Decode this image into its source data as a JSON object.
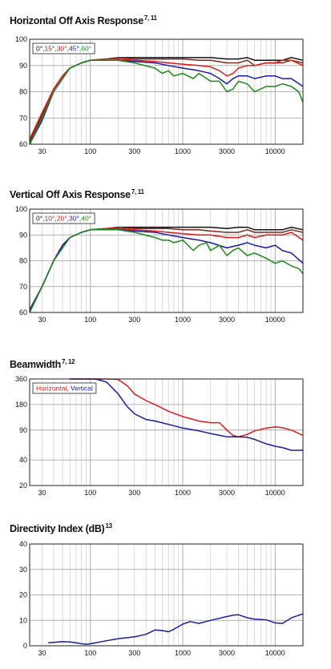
{
  "colors": {
    "black": "#111111",
    "brown": "#7a2a1a",
    "red": "#e01a1a",
    "navy": "#1a1aa6",
    "green": "#1a8a1a"
  },
  "chart_data": [
    {
      "type": "line",
      "title": "Horizontal Off Axis Response",
      "title_sup": "7, 11",
      "xscale": "log",
      "xlim": [
        22,
        20000
      ],
      "ylim": [
        60,
        100
      ],
      "grid": true,
      "xticks": [
        30,
        100,
        300,
        1000,
        3000,
        10000
      ],
      "xtick_labels": [
        "30",
        "100",
        "300",
        "1000",
        "3000",
        "10000"
      ],
      "yticks": [
        60,
        70,
        80,
        90,
        100
      ],
      "ytick_labels": [
        "60",
        "70",
        "80",
        "90",
        "100"
      ],
      "legend_position": "top-left",
      "series": [
        {
          "name": "0°",
          "color": "#111111",
          "x": [
            22,
            30,
            40,
            50,
            60,
            80,
            100,
            150,
            200,
            300,
            500,
            700,
            1000,
            1500,
            2000,
            3000,
            4000,
            5000,
            6000,
            8000,
            10000,
            12000,
            15000,
            20000
          ],
          "y": [
            61,
            71,
            81,
            86,
            89,
            91,
            92,
            92.5,
            93,
            93,
            93,
            93,
            93,
            93,
            93,
            92.5,
            92.5,
            93,
            92,
            92,
            92,
            92,
            93,
            92
          ]
        },
        {
          "name": "15°",
          "color": "#7a2a1a",
          "x": [
            22,
            30,
            40,
            50,
            60,
            80,
            100,
            150,
            200,
            300,
            500,
            700,
            1000,
            1500,
            2000,
            3000,
            4000,
            5000,
            6000,
            8000,
            10000,
            12000,
            15000,
            20000
          ],
          "y": [
            61,
            71,
            81,
            86,
            89,
            91,
            92,
            92.5,
            93,
            92.5,
            92.5,
            92.5,
            92.5,
            92,
            92,
            91,
            91,
            92,
            90,
            91,
            91,
            91,
            92,
            91
          ]
        },
        {
          "name": "30°",
          "color": "#e01a1a",
          "x": [
            22,
            30,
            40,
            50,
            60,
            80,
            100,
            150,
            200,
            300,
            500,
            700,
            1000,
            1500,
            2000,
            2500,
            3000,
            3500,
            4000,
            5000,
            6000,
            8000,
            10000,
            12000,
            15000,
            20000
          ],
          "y": [
            62,
            72,
            81,
            86,
            89,
            91,
            92,
            92.5,
            92.5,
            92,
            91.5,
            91,
            90.5,
            90,
            89.5,
            88,
            86,
            87,
            89,
            90,
            90,
            91,
            91,
            92,
            92,
            90
          ]
        },
        {
          "name": "45°",
          "color": "#1a1aa6",
          "x": [
            22,
            30,
            40,
            50,
            60,
            80,
            100,
            150,
            200,
            300,
            500,
            700,
            1000,
            1500,
            2000,
            2500,
            3000,
            3500,
            4000,
            5000,
            6000,
            8000,
            10000,
            12000,
            15000,
            20000
          ],
          "y": [
            60,
            69,
            80,
            85,
            89,
            91,
            92,
            92,
            92,
            91.5,
            91,
            90,
            89,
            88,
            87,
            85,
            83,
            85,
            86,
            86,
            85,
            86,
            86,
            85,
            85,
            82
          ]
        },
        {
          "name": "60°",
          "color": "#1a8a1a",
          "x": [
            22,
            30,
            40,
            50,
            60,
            80,
            100,
            150,
            200,
            300,
            500,
            600,
            700,
            800,
            1000,
            1300,
            1500,
            2000,
            2500,
            3000,
            3500,
            4000,
            5000,
            6000,
            8000,
            10000,
            12000,
            15000,
            18000,
            20000
          ],
          "y": [
            60,
            70,
            80,
            85,
            89,
            91,
            92,
            92,
            92,
            91,
            89,
            87,
            88,
            86,
            87,
            85,
            87,
            84,
            84,
            80,
            81,
            84,
            83,
            80,
            82,
            82,
            83,
            82,
            80,
            76
          ]
        }
      ]
    },
    {
      "type": "line",
      "title": "Vertical Off Axis Response",
      "title_sup": "7, 11",
      "xscale": "log",
      "xlim": [
        22,
        20000
      ],
      "ylim": [
        60,
        100
      ],
      "grid": true,
      "xticks": [
        30,
        100,
        300,
        1000,
        3000,
        10000
      ],
      "xtick_labels": [
        "30",
        "100",
        "300",
        "1000",
        "3000",
        "10000"
      ],
      "yticks": [
        60,
        70,
        80,
        90,
        100
      ],
      "ytick_labels": [
        "60",
        "70",
        "80",
        "90",
        "100"
      ],
      "legend_position": "top-left",
      "series": [
        {
          "name": "0°",
          "color": "#111111",
          "x": [
            22,
            30,
            40,
            50,
            60,
            80,
            100,
            150,
            200,
            300,
            500,
            700,
            1000,
            1500,
            2000,
            3000,
            4000,
            5000,
            6000,
            8000,
            10000,
            12000,
            15000,
            20000
          ],
          "y": [
            61,
            70,
            80,
            86,
            89,
            91,
            92,
            92.5,
            93,
            93,
            93,
            93,
            93,
            93,
            93,
            92.5,
            93,
            93,
            92,
            92,
            92,
            92,
            93,
            92
          ]
        },
        {
          "name": "10°",
          "color": "#7a2a1a",
          "x": [
            22,
            30,
            40,
            50,
            60,
            80,
            100,
            150,
            200,
            300,
            500,
            700,
            1000,
            1500,
            2000,
            3000,
            4000,
            5000,
            6000,
            8000,
            10000,
            12000,
            15000,
            20000
          ],
          "y": [
            61,
            70,
            80,
            86,
            89,
            91,
            92,
            92.5,
            93,
            92.5,
            92.5,
            92.5,
            92,
            92,
            91.5,
            91,
            91,
            92,
            91,
            91,
            91,
            91,
            92,
            91
          ]
        },
        {
          "name": "20°",
          "color": "#e01a1a",
          "x": [
            22,
            30,
            40,
            50,
            60,
            80,
            100,
            150,
            200,
            300,
            500,
            700,
            1000,
            1500,
            2000,
            3000,
            4000,
            5000,
            6000,
            8000,
            10000,
            12000,
            15000,
            20000
          ],
          "y": [
            61,
            70,
            80,
            86,
            89,
            91,
            92,
            92.5,
            92.5,
            92,
            91.5,
            91,
            90.5,
            90,
            90,
            89,
            89,
            90,
            89,
            90,
            90,
            90,
            91,
            88
          ]
        },
        {
          "name": "30°",
          "color": "#1a1aa6",
          "x": [
            22,
            30,
            40,
            50,
            60,
            80,
            100,
            150,
            200,
            300,
            500,
            700,
            1000,
            1500,
            2000,
            3000,
            4000,
            5000,
            6000,
            8000,
            10000,
            12000,
            15000,
            20000
          ],
          "y": [
            61,
            70,
            80,
            86,
            89,
            91,
            92,
            92,
            92,
            91.5,
            91,
            90,
            89,
            88,
            87,
            85,
            86,
            87,
            86,
            85,
            86,
            84,
            83,
            79
          ]
        },
        {
          "name": "40°",
          "color": "#1a8a1a",
          "x": [
            22,
            30,
            40,
            50,
            60,
            80,
            100,
            150,
            200,
            300,
            500,
            600,
            700,
            800,
            1000,
            1300,
            1500,
            1800,
            2000,
            2500,
            3000,
            3500,
            4000,
            5000,
            6000,
            8000,
            10000,
            12000,
            15000,
            18000,
            20000
          ],
          "y": [
            60,
            70,
            80,
            85,
            89,
            91,
            92,
            92,
            92,
            91,
            89,
            88,
            88,
            87,
            88,
            84,
            86,
            87,
            84,
            86,
            82,
            84,
            85,
            82,
            83,
            81,
            79,
            80,
            78,
            77,
            75
          ]
        }
      ]
    },
    {
      "type": "line",
      "title": "Beamwidth",
      "title_sup": "7, 12",
      "xscale": "log",
      "xlim": [
        22,
        20000
      ],
      "yscale": "log",
      "ylim": [
        20,
        360
      ],
      "grid": true,
      "xticks": [
        30,
        100,
        300,
        1000,
        3000,
        10000
      ],
      "xtick_labels": [
        "30",
        "100",
        "300",
        "1000",
        "3000",
        "10000"
      ],
      "yticks": [
        20,
        40,
        90,
        180,
        360
      ],
      "ytick_labels": [
        "20",
        "40",
        "90",
        "180",
        "360"
      ],
      "legend_position": "top-left",
      "series": [
        {
          "name": "Horizontal",
          "color": "#e01a1a",
          "x": [
            60,
            100,
            150,
            200,
            250,
            300,
            400,
            500,
            700,
            1000,
            1500,
            2000,
            2500,
            3000,
            3500,
            4000,
            5000,
            6000,
            8000,
            10000,
            12000,
            15000,
            20000
          ],
          "y": [
            360,
            360,
            360,
            355,
            300,
            240,
            200,
            180,
            150,
            130,
            115,
            110,
            110,
            90,
            78,
            75,
            80,
            88,
            95,
            98,
            96,
            90,
            78
          ]
        },
        {
          "name": "Vertical",
          "color": "#1a1aa6",
          "x": [
            60,
            100,
            120,
            150,
            200,
            250,
            300,
            400,
            500,
            700,
            1000,
            1500,
            2000,
            3000,
            4000,
            5000,
            6000,
            8000,
            10000,
            12000,
            15000,
            20000
          ],
          "y": [
            360,
            360,
            355,
            330,
            240,
            170,
            140,
            120,
            115,
            105,
            95,
            88,
            82,
            75,
            75,
            74,
            70,
            62,
            58,
            56,
            52,
            52
          ]
        }
      ]
    },
    {
      "type": "line",
      "title": "Directivity Index (dB)",
      "title_sup": "13",
      "xscale": "log",
      "xlim": [
        22,
        20000
      ],
      "ylim": [
        0,
        40
      ],
      "grid": true,
      "xticks": [
        30,
        100,
        300,
        1000,
        3000,
        10000
      ],
      "xtick_labels": [
        "30",
        "100",
        "300",
        "1000",
        "3000",
        "10000"
      ],
      "yticks": [
        0,
        10,
        20,
        30,
        40
      ],
      "ytick_labels": [
        "0",
        "10",
        "20",
        "30",
        "40"
      ],
      "series": [
        {
          "color": "#1a1aa6",
          "x": [
            35,
            50,
            60,
            70,
            80,
            90,
            100,
            150,
            200,
            300,
            400,
            500,
            600,
            700,
            800,
            1000,
            1200,
            1500,
            2000,
            2500,
            3000,
            3500,
            4000,
            5000,
            6000,
            8000,
            10000,
            12000,
            15000,
            18000,
            20000
          ],
          "y": [
            1.2,
            1.6,
            1.5,
            1.2,
            0.8,
            0.6,
            0.8,
            2,
            2.8,
            3.5,
            4.5,
            6.2,
            6,
            5.5,
            6.5,
            8.5,
            9.5,
            8.8,
            10,
            10.8,
            11.5,
            12,
            12.2,
            11,
            10.5,
            10.2,
            9,
            8.8,
            11,
            12,
            12.5
          ]
        }
      ]
    }
  ]
}
